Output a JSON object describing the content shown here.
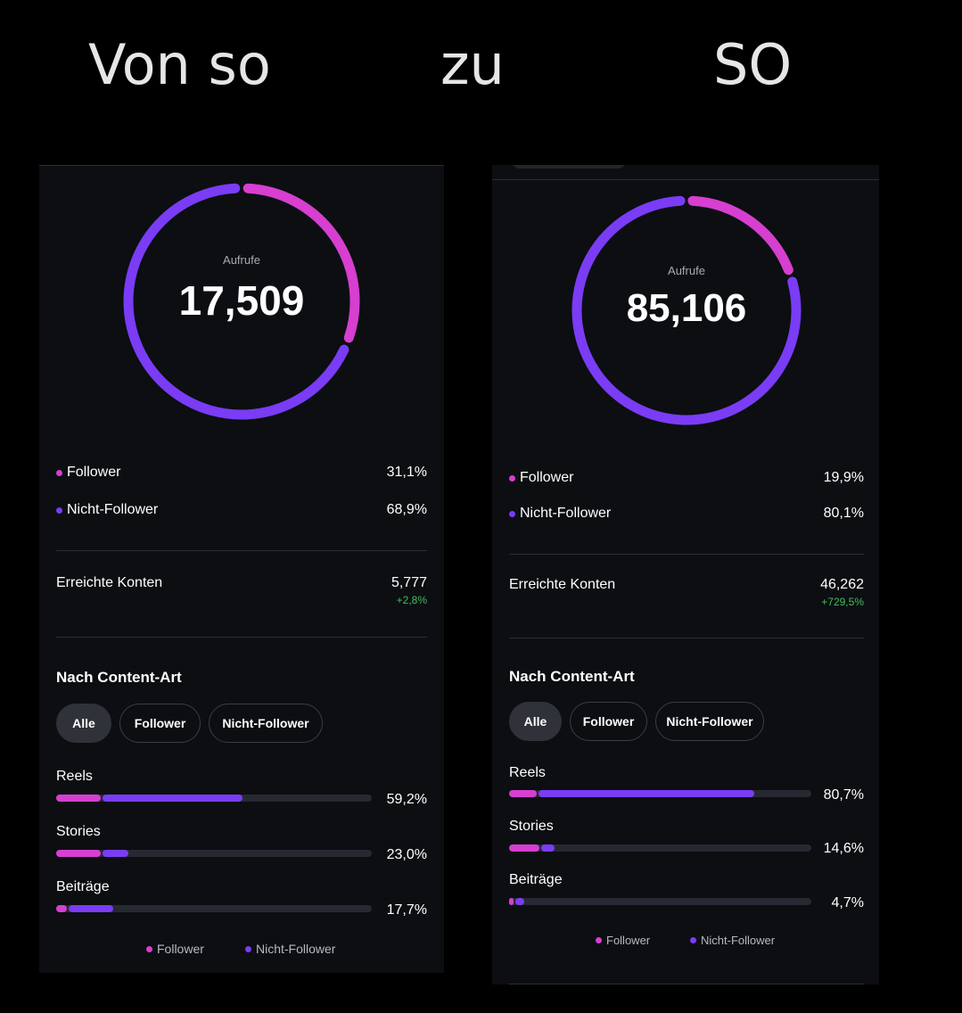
{
  "captions": {
    "left": "Von so",
    "middle": "zu",
    "right": "SO"
  },
  "colors": {
    "follower": "#d63fd0",
    "non_follower": "#7a3cf5",
    "positive": "#3fbf5a"
  },
  "before": {
    "views_label": "Aufrufe",
    "views_value": "17,509",
    "follower_label": "Follower",
    "follower_pct": "31,1%",
    "follower_share": 0.311,
    "non_follower_label": "Nicht-Follower",
    "non_follower_pct": "68,9%",
    "reached_label": "Erreichte Konten",
    "reached_value": "5,777",
    "reached_delta": "+2,8%",
    "section_title": "Nach Content-Art",
    "filters": [
      "Alle",
      "Follower",
      "Nicht-Follower"
    ],
    "content_types": [
      {
        "label": "Reels",
        "pct": "59,2%",
        "follower_fraction": 0.14,
        "non_follower_fraction": 0.45
      },
      {
        "label": "Stories",
        "pct": "23,0%",
        "follower_fraction": 0.14,
        "non_follower_fraction": 0.09
      },
      {
        "label": "Beiträge",
        "pct": "17,7%",
        "follower_fraction": 0.035,
        "non_follower_fraction": 0.145
      }
    ],
    "legend": {
      "follower": "Follower",
      "non_follower": "Nicht-Follower"
    }
  },
  "after": {
    "views_label": "Aufrufe",
    "views_value": "85,106",
    "follower_label": "Follower",
    "follower_pct": "19,9%",
    "follower_share": 0.199,
    "non_follower_label": "Nicht-Follower",
    "non_follower_pct": "80,1%",
    "reached_label": "Erreichte Konten",
    "reached_value": "46,262",
    "reached_delta": "+729,5%",
    "section_title": "Nach Content-Art",
    "filters": [
      "Alle",
      "Follower",
      "Nicht-Follower"
    ],
    "content_types": [
      {
        "label": "Reels",
        "pct": "80,7%",
        "follower_fraction": 0.09,
        "non_follower_fraction": 0.72
      },
      {
        "label": "Stories",
        "pct": "14,6%",
        "follower_fraction": 0.1,
        "non_follower_fraction": 0.05
      },
      {
        "label": "Beiträge",
        "pct": "4,7%",
        "follower_fraction": 0.016,
        "non_follower_fraction": 0.034
      }
    ],
    "legend": {
      "follower": "Follower",
      "non_follower": "Nicht-Follower"
    }
  }
}
